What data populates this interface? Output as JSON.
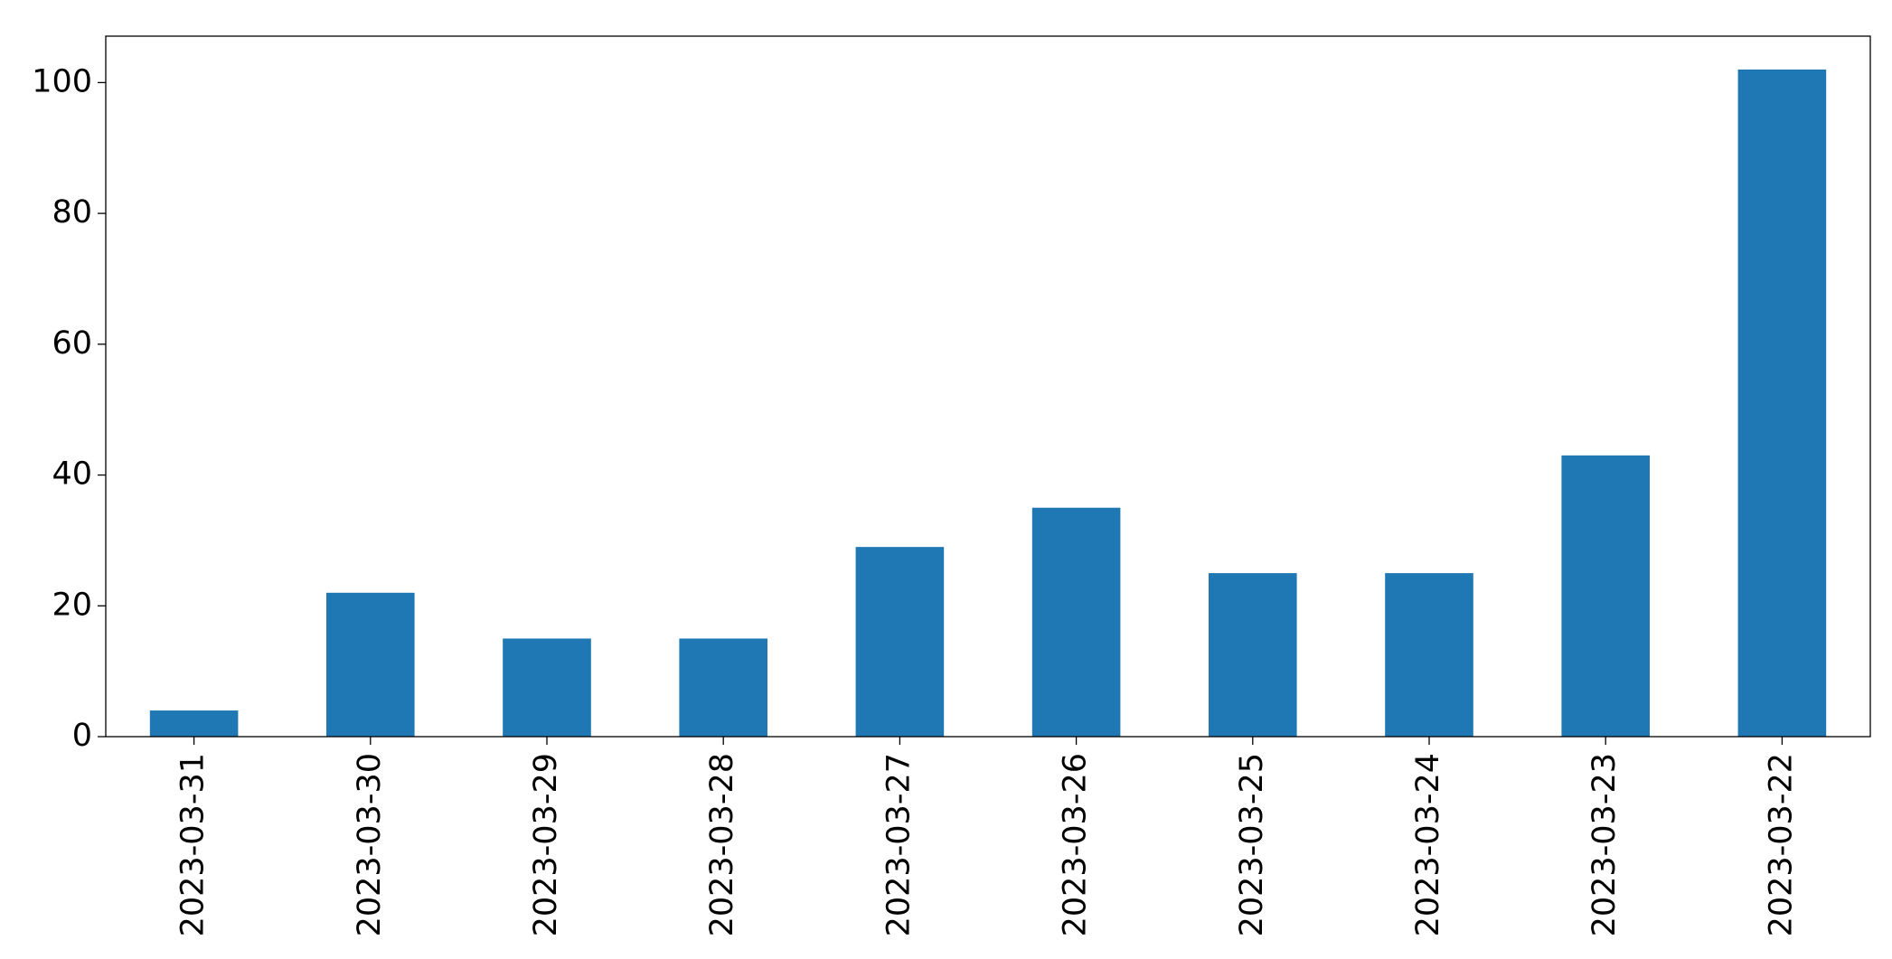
{
  "chart_data": {
    "type": "bar",
    "categories": [
      "2023-03-31",
      "2023-03-30",
      "2023-03-29",
      "2023-03-28",
      "2023-03-27",
      "2023-03-26",
      "2023-03-25",
      "2023-03-24",
      "2023-03-23",
      "2023-03-22"
    ],
    "values": [
      4,
      22,
      15,
      15,
      29,
      35,
      25,
      25,
      43,
      102
    ],
    "color": "#1f77b4",
    "ylim": [
      0,
      107.1
    ],
    "yticks": [
      0,
      20,
      40,
      60,
      80,
      100
    ],
    "grid": false
  }
}
